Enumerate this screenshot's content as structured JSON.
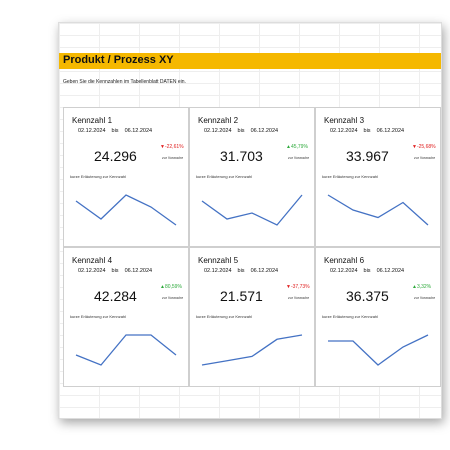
{
  "header": {
    "title": "Produkt / Prozess XY",
    "subtitle": "Geben Sie die Kennzahlen im Tabellenblatt DATEN ein."
  },
  "cards": [
    {
      "name": "Kennzahl 1",
      "date_from": "02.12.2024",
      "bis": "bis",
      "date_to": "06.12.2024",
      "value": "24.296",
      "change": "▼-22,61%",
      "color": "#e02020",
      "comparison": "zur Vorwoche",
      "note": "kurze Erläuterung zur Kennzahl",
      "sparkline": [
        6,
        3,
        7,
        5,
        2
      ]
    },
    {
      "name": "Kennzahl 2",
      "date_from": "02.12.2024",
      "bis": "bis",
      "date_to": "06.12.2024",
      "value": "31.703",
      "change": "▲45,79%",
      "color": "#2eaa3c",
      "comparison": "zur Vorwoche",
      "note": "kurze Erläuterung zur Kennzahl",
      "sparkline": [
        7,
        4,
        5,
        3,
        8
      ]
    },
    {
      "name": "Kennzahl 3",
      "date_from": "02.12.2024",
      "bis": "bis",
      "date_to": "06.12.2024",
      "value": "33.967",
      "change": "▼-25,68%",
      "color": "#e02020",
      "comparison": "zur Vorwoche",
      "note": "kurze Erläuterung zur Kennzahl",
      "sparkline": [
        7,
        5,
        4,
        6,
        3
      ]
    },
    {
      "name": "Kennzahl 4",
      "date_from": "02.12.2024",
      "bis": "bis",
      "date_to": "06.12.2024",
      "value": "42.284",
      "change": "▲80,59%",
      "color": "#2eaa3c",
      "comparison": "zur Vorwoche",
      "note": "kurze Erläuterung zur Kennzahl",
      "sparkline": [
        4,
        3,
        6,
        6,
        4
      ]
    },
    {
      "name": "Kennzahl 5",
      "date_from": "02.12.2024",
      "bis": "bis",
      "date_to": "06.12.2024",
      "value": "21.571",
      "change": "▼-37,73%",
      "color": "#e02020",
      "comparison": "zur Vorwoche",
      "note": "kurze Erläuterung zur Kennzahl",
      "sparkline": [
        2,
        3,
        4,
        8,
        9
      ]
    },
    {
      "name": "Kennzahl 6",
      "date_from": "02.12.2024",
      "bis": "bis",
      "date_to": "06.12.2024",
      "value": "36.375",
      "change": "▲3,32%",
      "color": "#2eaa3c",
      "comparison": "zur Vorwoche",
      "note": "kurze Erläuterung zur Kennzahl",
      "sparkline": [
        6,
        6,
        2,
        5,
        7
      ]
    }
  ]
}
